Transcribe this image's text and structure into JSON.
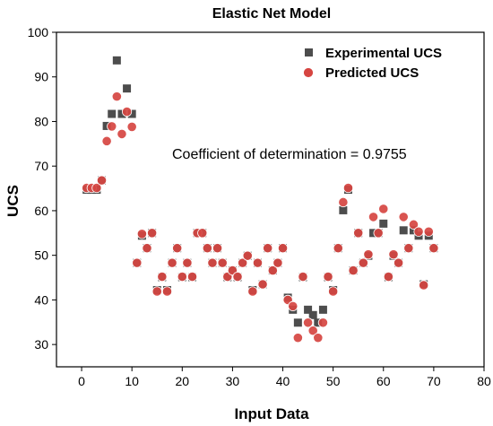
{
  "chart_data": {
    "type": "scatter",
    "title": "Elastic Net Model",
    "xlabel": "Input Data",
    "ylabel": "UCS",
    "xlim": [
      -5,
      80
    ],
    "ylim": [
      25,
      100
    ],
    "xticks": [
      0,
      10,
      20,
      30,
      40,
      50,
      60,
      70,
      80
    ],
    "yticks": [
      30,
      40,
      50,
      60,
      70,
      80,
      90,
      100
    ],
    "grid": false,
    "legend": "top-right",
    "annotation": "Coefficient of determination = 0.9755",
    "series": [
      {
        "name": "Experimental UCS",
        "marker": "square",
        "color": "#4d4d4d",
        "x": [
          1,
          2,
          3,
          4,
          5,
          6,
          7,
          8,
          9,
          10,
          11,
          12,
          13,
          14,
          15,
          16,
          17,
          18,
          19,
          20,
          21,
          22,
          23,
          24,
          25,
          26,
          27,
          28,
          29,
          30,
          31,
          32,
          33,
          34,
          35,
          36,
          37,
          38,
          39,
          40,
          41,
          42,
          43,
          44,
          45,
          46,
          47,
          48,
          49,
          50,
          51,
          52,
          53,
          54,
          55,
          56,
          57,
          58,
          59,
          60,
          61,
          62,
          63,
          64,
          65,
          66,
          67,
          68,
          69,
          70
        ],
        "y": [
          64.7,
          64.7,
          64.7,
          66.8,
          79.0,
          81.7,
          93.7,
          81.7,
          87.4,
          81.7,
          48.3,
          54.4,
          51.6,
          55.0,
          42.2,
          45.1,
          42.2,
          48.3,
          51.6,
          45.1,
          48.3,
          45.1,
          55.0,
          55.0,
          51.6,
          48.3,
          51.6,
          48.3,
          45.1,
          46.6,
          45.1,
          48.3,
          49.9,
          42.2,
          48.3,
          43.5,
          51.6,
          46.6,
          48.3,
          51.6,
          40.5,
          37.8,
          34.9,
          45.1,
          37.8,
          36.6,
          34.9,
          37.8,
          45.1,
          42.2,
          51.6,
          60.1,
          64.7,
          46.6,
          55.0,
          48.3,
          49.9,
          55.0,
          55.0,
          57.1,
          45.1,
          49.9,
          48.3,
          55.6,
          51.6,
          55.6,
          54.4,
          43.5,
          54.4,
          51.6
        ]
      },
      {
        "name": "Predicted UCS",
        "marker": "circle",
        "color": "#d64541",
        "x": [
          1,
          2,
          3,
          4,
          5,
          6,
          7,
          8,
          9,
          10,
          11,
          12,
          13,
          14,
          15,
          16,
          17,
          18,
          19,
          20,
          21,
          22,
          23,
          24,
          25,
          26,
          27,
          28,
          29,
          30,
          31,
          32,
          33,
          34,
          35,
          36,
          37,
          38,
          39,
          40,
          41,
          42,
          43,
          44,
          45,
          46,
          47,
          48,
          49,
          50,
          51,
          52,
          53,
          54,
          55,
          56,
          57,
          58,
          59,
          60,
          61,
          62,
          63,
          64,
          65,
          66,
          67,
          68,
          69,
          70
        ],
        "y": [
          65.1,
          65.1,
          65.1,
          66.8,
          75.6,
          78.9,
          85.6,
          77.2,
          82.2,
          78.8,
          48.3,
          54.8,
          51.6,
          55.0,
          41.9,
          45.2,
          41.9,
          48.3,
          51.6,
          45.2,
          48.3,
          45.2,
          55.0,
          55.0,
          51.6,
          48.3,
          51.6,
          48.3,
          45.2,
          46.6,
          45.2,
          48.3,
          49.9,
          41.9,
          48.3,
          43.5,
          51.6,
          46.6,
          48.3,
          51.6,
          40.0,
          38.6,
          31.5,
          45.2,
          34.9,
          33.1,
          31.5,
          34.9,
          45.2,
          41.9,
          51.6,
          61.9,
          65.1,
          46.6,
          55.0,
          48.3,
          50.2,
          58.6,
          55.0,
          60.4,
          45.2,
          50.2,
          48.3,
          58.6,
          51.6,
          56.9,
          55.3,
          43.3,
          55.3,
          51.6
        ]
      }
    ]
  }
}
